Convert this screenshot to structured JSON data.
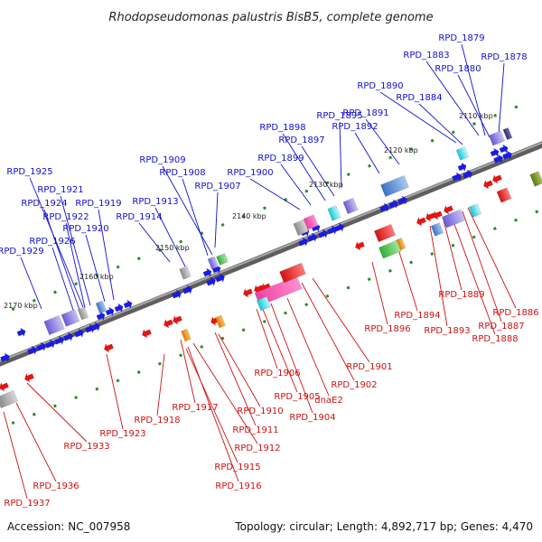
{
  "title": "Rhodopseudomonas palustris BisB5, complete genome",
  "footer": {
    "accession": "Accession: NC_007958",
    "summary": "Topology: circular; Length: 4,892,717 bp; Genes: 4,470"
  },
  "kbp_labels": [
    "2110 kbp",
    "2120 kbp",
    "2130 kbp",
    "2140 kbp",
    "2150 kbp",
    "2160 kbp",
    "2170 kbp"
  ],
  "forward_labels": [
    "RPD_1879",
    "RPD_1883",
    "RPD_1878",
    "RPD_1880",
    "RPD_1890",
    "RPD_1884",
    "RPD_1891",
    "RPD_1895",
    "RPD_1892",
    "RPD_1898",
    "RPD_1897",
    "RPD_1909",
    "RPD_1899",
    "RPD_1908",
    "RPD_1900",
    "RPD_1907",
    "RPD_1925",
    "RPD_1913",
    "RPD_1921",
    "RPD_1924",
    "RPD_1919",
    "RPD_1914",
    "RPD_1922",
    "RPD_1920",
    "RPD_1926",
    "RPD_1929"
  ],
  "reverse_labels": [
    "RPD_1889",
    "RPD_1886",
    "RPD_1894",
    "RPD_1887",
    "RPD_1896",
    "RPD_1893",
    "RPD_1888",
    "RPD_1901",
    "RPD_1906",
    "RPD_1902",
    "RPD_1905",
    "dnaE2",
    "RPD_1904",
    "RPD_1918",
    "RPD_1917",
    "RPD_1910",
    "RPD_1911",
    "RPD_1923",
    "RPD_1912",
    "RPD_1933",
    "RPD_1915",
    "RPD_1936",
    "RPD_1916",
    "RPD_1937"
  ],
  "colors": {
    "forward_label": "#1010cc",
    "reverse_label": "#cc1111",
    "forward_gene": "#1a1aee",
    "reverse_gene": "#ee1111",
    "backbone": "#808080",
    "tick": "#2a8a2a"
  }
}
